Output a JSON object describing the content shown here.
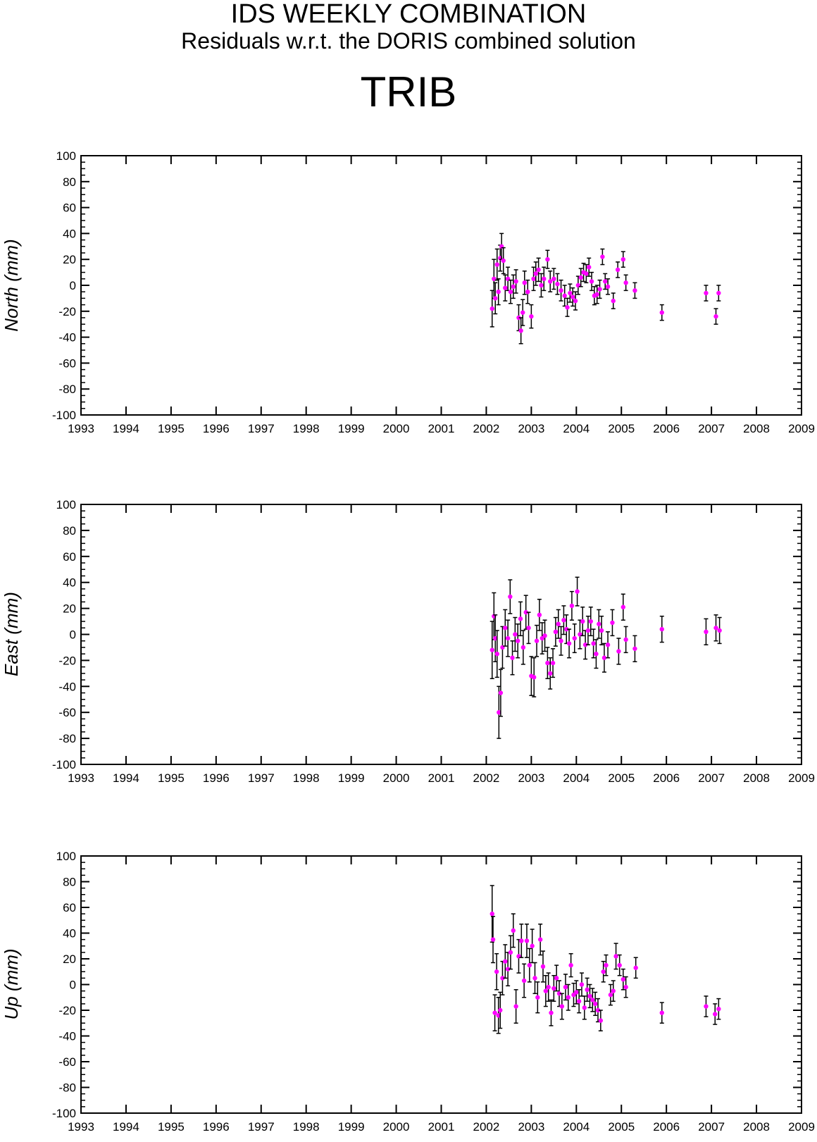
{
  "header": {
    "title": "IDS WEEKLY COMBINATION",
    "subtitle": "Residuals w.r.t. the DORIS combined solution",
    "station": "TRIB"
  },
  "colors": {
    "point": "#ff00ff",
    "errorbar": "#000000",
    "axis": "#000000"
  },
  "chart_data": [
    {
      "type": "scatter",
      "ylabel": "North (mm)",
      "xlim": [
        1993,
        2009
      ],
      "ylim": [
        -100,
        100
      ],
      "x_ticks": [
        1993,
        1994,
        1995,
        1996,
        1997,
        1998,
        1999,
        2000,
        2001,
        2002,
        2003,
        2004,
        2005,
        2006,
        2007,
        2008,
        2009
      ],
      "y_ticks": [
        -100,
        -80,
        -60,
        -40,
        -20,
        0,
        20,
        40,
        60,
        80,
        100
      ],
      "points": [
        {
          "x": 2002.13,
          "y": -18,
          "err": 14
        },
        {
          "x": 2002.17,
          "y": 5,
          "err": 15
        },
        {
          "x": 2002.2,
          "y": -10,
          "err": 12
        },
        {
          "x": 2002.24,
          "y": 16,
          "err": 12
        },
        {
          "x": 2002.27,
          "y": -5,
          "err": 10
        },
        {
          "x": 2002.31,
          "y": 21,
          "err": 10
        },
        {
          "x": 2002.34,
          "y": 30,
          "err": 10
        },
        {
          "x": 2002.38,
          "y": 19,
          "err": 10
        },
        {
          "x": 2002.42,
          "y": -2,
          "err": 10
        },
        {
          "x": 2002.48,
          "y": 5,
          "err": 9
        },
        {
          "x": 2002.54,
          "y": -5,
          "err": 9
        },
        {
          "x": 2002.6,
          "y": -1,
          "err": 9
        },
        {
          "x": 2002.66,
          "y": 3,
          "err": 9
        },
        {
          "x": 2002.72,
          "y": -25,
          "err": 10
        },
        {
          "x": 2002.77,
          "y": -35,
          "err": 10
        },
        {
          "x": 2002.81,
          "y": -21,
          "err": 10
        },
        {
          "x": 2002.85,
          "y": 2,
          "err": 9
        },
        {
          "x": 2002.92,
          "y": -5,
          "err": 9
        },
        {
          "x": 2003.0,
          "y": -24,
          "err": 9
        },
        {
          "x": 2003.05,
          "y": 5,
          "err": 9
        },
        {
          "x": 2003.1,
          "y": 9,
          "err": 9
        },
        {
          "x": 2003.16,
          "y": 12,
          "err": 9
        },
        {
          "x": 2003.22,
          "y": 0,
          "err": 9
        },
        {
          "x": 2003.28,
          "y": 5,
          "err": 9
        },
        {
          "x": 2003.36,
          "y": 20,
          "err": 7
        },
        {
          "x": 2003.42,
          "y": 3,
          "err": 8
        },
        {
          "x": 2003.5,
          "y": 5,
          "err": 8
        },
        {
          "x": 2003.58,
          "y": 1,
          "err": 8
        },
        {
          "x": 2003.66,
          "y": -4,
          "err": 8
        },
        {
          "x": 2003.74,
          "y": -8,
          "err": 8
        },
        {
          "x": 2003.8,
          "y": -17,
          "err": 7
        },
        {
          "x": 2003.86,
          "y": -6,
          "err": 7
        },
        {
          "x": 2003.92,
          "y": -9,
          "err": 7
        },
        {
          "x": 2003.98,
          "y": -12,
          "err": 7
        },
        {
          "x": 2004.04,
          "y": 0,
          "err": 7
        },
        {
          "x": 2004.1,
          "y": 6,
          "err": 7
        },
        {
          "x": 2004.16,
          "y": 10,
          "err": 7
        },
        {
          "x": 2004.22,
          "y": 9,
          "err": 7
        },
        {
          "x": 2004.28,
          "y": 14,
          "err": 7
        },
        {
          "x": 2004.34,
          "y": 3,
          "err": 7
        },
        {
          "x": 2004.4,
          "y": -8,
          "err": 7
        },
        {
          "x": 2004.46,
          "y": -7,
          "err": 7
        },
        {
          "x": 2004.52,
          "y": -3,
          "err": 7
        },
        {
          "x": 2004.58,
          "y": 22,
          "err": 6
        },
        {
          "x": 2004.64,
          "y": 3,
          "err": 6
        },
        {
          "x": 2004.7,
          "y": -1,
          "err": 6
        },
        {
          "x": 2004.82,
          "y": -12,
          "err": 6
        },
        {
          "x": 2004.92,
          "y": 12,
          "err": 6
        },
        {
          "x": 2005.04,
          "y": 20,
          "err": 6
        },
        {
          "x": 2005.1,
          "y": 2,
          "err": 6
        },
        {
          "x": 2005.3,
          "y": -4,
          "err": 6
        },
        {
          "x": 2005.9,
          "y": -21,
          "err": 6
        },
        {
          "x": 2006.88,
          "y": -6,
          "err": 6
        },
        {
          "x": 2007.1,
          "y": -24,
          "err": 6
        },
        {
          "x": 2007.16,
          "y": -6,
          "err": 6
        }
      ]
    },
    {
      "type": "scatter",
      "ylabel": "East (mm)",
      "xlim": [
        1993,
        2009
      ],
      "ylim": [
        -100,
        100
      ],
      "x_ticks": [
        1993,
        1994,
        1995,
        1996,
        1997,
        1998,
        1999,
        2000,
        2001,
        2002,
        2003,
        2004,
        2005,
        2006,
        2007,
        2008,
        2009
      ],
      "y_ticks": [
        -100,
        -80,
        -60,
        -40,
        -20,
        0,
        20,
        40,
        60,
        80,
        100
      ],
      "points": [
        {
          "x": 2002.13,
          "y": -12,
          "err": 22
        },
        {
          "x": 2002.17,
          "y": 14,
          "err": 18
        },
        {
          "x": 2002.2,
          "y": -3,
          "err": 18
        },
        {
          "x": 2002.24,
          "y": -15,
          "err": 18
        },
        {
          "x": 2002.28,
          "y": -60,
          "err": 20
        },
        {
          "x": 2002.32,
          "y": -45,
          "err": 18
        },
        {
          "x": 2002.36,
          "y": -10,
          "err": 16
        },
        {
          "x": 2002.42,
          "y": 5,
          "err": 14
        },
        {
          "x": 2002.48,
          "y": -3,
          "err": 14
        },
        {
          "x": 2002.53,
          "y": 29,
          "err": 13
        },
        {
          "x": 2002.58,
          "y": -18,
          "err": 13
        },
        {
          "x": 2002.64,
          "y": 0,
          "err": 13
        },
        {
          "x": 2002.7,
          "y": -5,
          "err": 13
        },
        {
          "x": 2002.76,
          "y": 12,
          "err": 13
        },
        {
          "x": 2002.82,
          "y": -10,
          "err": 13
        },
        {
          "x": 2002.88,
          "y": 17,
          "err": 13
        },
        {
          "x": 2002.94,
          "y": 5,
          "err": 12
        },
        {
          "x": 2003.0,
          "y": -32,
          "err": 15
        },
        {
          "x": 2003.06,
          "y": -33,
          "err": 15
        },
        {
          "x": 2003.12,
          "y": -5,
          "err": 12
        },
        {
          "x": 2003.18,
          "y": 15,
          "err": 12
        },
        {
          "x": 2003.24,
          "y": -3,
          "err": 12
        },
        {
          "x": 2003.3,
          "y": -1,
          "err": 12
        },
        {
          "x": 2003.36,
          "y": -22,
          "err": 12
        },
        {
          "x": 2003.42,
          "y": -30,
          "err": 12
        },
        {
          "x": 2003.48,
          "y": -22,
          "err": 11
        },
        {
          "x": 2003.54,
          "y": 2,
          "err": 11
        },
        {
          "x": 2003.6,
          "y": 8,
          "err": 11
        },
        {
          "x": 2003.66,
          "y": -5,
          "err": 11
        },
        {
          "x": 2003.72,
          "y": 11,
          "err": 11
        },
        {
          "x": 2003.78,
          "y": 4,
          "err": 11
        },
        {
          "x": 2003.84,
          "y": -7,
          "err": 11
        },
        {
          "x": 2003.9,
          "y": 22,
          "err": 11
        },
        {
          "x": 2003.96,
          "y": -3,
          "err": 11
        },
        {
          "x": 2004.02,
          "y": 33,
          "err": 11
        },
        {
          "x": 2004.08,
          "y": 0,
          "err": 11
        },
        {
          "x": 2004.14,
          "y": 10,
          "err": 11
        },
        {
          "x": 2004.2,
          "y": -8,
          "err": 11
        },
        {
          "x": 2004.26,
          "y": 3,
          "err": 11
        },
        {
          "x": 2004.32,
          "y": 10,
          "err": 11
        },
        {
          "x": 2004.38,
          "y": -7,
          "err": 11
        },
        {
          "x": 2004.44,
          "y": -15,
          "err": 11
        },
        {
          "x": 2004.5,
          "y": 8,
          "err": 11
        },
        {
          "x": 2004.56,
          "y": 3,
          "err": 11
        },
        {
          "x": 2004.62,
          "y": -18,
          "err": 11
        },
        {
          "x": 2004.7,
          "y": -8,
          "err": 10
        },
        {
          "x": 2004.8,
          "y": 9,
          "err": 10
        },
        {
          "x": 2004.94,
          "y": -13,
          "err": 10
        },
        {
          "x": 2005.04,
          "y": 21,
          "err": 10
        },
        {
          "x": 2005.1,
          "y": -4,
          "err": 10
        },
        {
          "x": 2005.3,
          "y": -11,
          "err": 10
        },
        {
          "x": 2005.9,
          "y": 4,
          "err": 10
        },
        {
          "x": 2006.88,
          "y": 2,
          "err": 10
        },
        {
          "x": 2007.1,
          "y": 5,
          "err": 10
        },
        {
          "x": 2007.18,
          "y": 3,
          "err": 10
        }
      ]
    },
    {
      "type": "scatter",
      "ylabel": "Up (mm)",
      "xlim": [
        1993,
        2009
      ],
      "ylim": [
        -100,
        100
      ],
      "x_ticks": [
        1993,
        1994,
        1995,
        1996,
        1997,
        1998,
        1999,
        2000,
        2001,
        2002,
        2003,
        2004,
        2005,
        2006,
        2007,
        2008,
        2009
      ],
      "y_ticks": [
        -100,
        -80,
        -60,
        -40,
        -20,
        0,
        20,
        40,
        60,
        80,
        100
      ],
      "points": [
        {
          "x": 2002.13,
          "y": 55,
          "err": 22
        },
        {
          "x": 2002.15,
          "y": 35,
          "err": 18
        },
        {
          "x": 2002.19,
          "y": -22,
          "err": 14
        },
        {
          "x": 2002.23,
          "y": 10,
          "err": 14
        },
        {
          "x": 2002.27,
          "y": -24,
          "err": 14
        },
        {
          "x": 2002.31,
          "y": -20,
          "err": 14
        },
        {
          "x": 2002.36,
          "y": 5,
          "err": 13
        },
        {
          "x": 2002.42,
          "y": 18,
          "err": 13
        },
        {
          "x": 2002.48,
          "y": 12,
          "err": 13
        },
        {
          "x": 2002.54,
          "y": 25,
          "err": 13
        },
        {
          "x": 2002.6,
          "y": 42,
          "err": 13
        },
        {
          "x": 2002.66,
          "y": -17,
          "err": 13
        },
        {
          "x": 2002.72,
          "y": 22,
          "err": 13
        },
        {
          "x": 2002.78,
          "y": 34,
          "err": 13
        },
        {
          "x": 2002.84,
          "y": 3,
          "err": 13
        },
        {
          "x": 2002.9,
          "y": 34,
          "err": 13
        },
        {
          "x": 2002.96,
          "y": 15,
          "err": 13
        },
        {
          "x": 2003.02,
          "y": 30,
          "err": 13
        },
        {
          "x": 2003.08,
          "y": 5,
          "err": 12
        },
        {
          "x": 2003.14,
          "y": -10,
          "err": 12
        },
        {
          "x": 2003.2,
          "y": 35,
          "err": 12
        },
        {
          "x": 2003.26,
          "y": 14,
          "err": 12
        },
        {
          "x": 2003.32,
          "y": -5,
          "err": 12
        },
        {
          "x": 2003.38,
          "y": -2,
          "err": 11
        },
        {
          "x": 2003.44,
          "y": -22,
          "err": 10
        },
        {
          "x": 2003.5,
          "y": -3,
          "err": 10
        },
        {
          "x": 2003.56,
          "y": 5,
          "err": 10
        },
        {
          "x": 2003.62,
          "y": -7,
          "err": 10
        },
        {
          "x": 2003.68,
          "y": -17,
          "err": 10
        },
        {
          "x": 2003.76,
          "y": -2,
          "err": 10
        },
        {
          "x": 2003.82,
          "y": -10,
          "err": 10
        },
        {
          "x": 2003.88,
          "y": 15,
          "err": 9
        },
        {
          "x": 2003.94,
          "y": -8,
          "err": 9
        },
        {
          "x": 2004.0,
          "y": -6,
          "err": 9
        },
        {
          "x": 2004.06,
          "y": -13,
          "err": 9
        },
        {
          "x": 2004.12,
          "y": 0,
          "err": 9
        },
        {
          "x": 2004.18,
          "y": -18,
          "err": 9
        },
        {
          "x": 2004.24,
          "y": -4,
          "err": 9
        },
        {
          "x": 2004.3,
          "y": -9,
          "err": 9
        },
        {
          "x": 2004.36,
          "y": -12,
          "err": 9
        },
        {
          "x": 2004.42,
          "y": -15,
          "err": 9
        },
        {
          "x": 2004.48,
          "y": -20,
          "err": 9
        },
        {
          "x": 2004.54,
          "y": -28,
          "err": 8
        },
        {
          "x": 2004.6,
          "y": 10,
          "err": 8
        },
        {
          "x": 2004.66,
          "y": 15,
          "err": 8
        },
        {
          "x": 2004.76,
          "y": -8,
          "err": 8
        },
        {
          "x": 2004.82,
          "y": -5,
          "err": 8
        },
        {
          "x": 2004.88,
          "y": 22,
          "err": 10
        },
        {
          "x": 2004.96,
          "y": 15,
          "err": 8
        },
        {
          "x": 2005.04,
          "y": 4,
          "err": 8
        },
        {
          "x": 2005.1,
          "y": -2,
          "err": 8
        },
        {
          "x": 2005.32,
          "y": 13,
          "err": 8
        },
        {
          "x": 2005.9,
          "y": -22,
          "err": 8
        },
        {
          "x": 2006.88,
          "y": -17,
          "err": 8
        },
        {
          "x": 2007.08,
          "y": -23,
          "err": 8
        },
        {
          "x": 2007.16,
          "y": -19,
          "err": 8
        }
      ]
    }
  ]
}
